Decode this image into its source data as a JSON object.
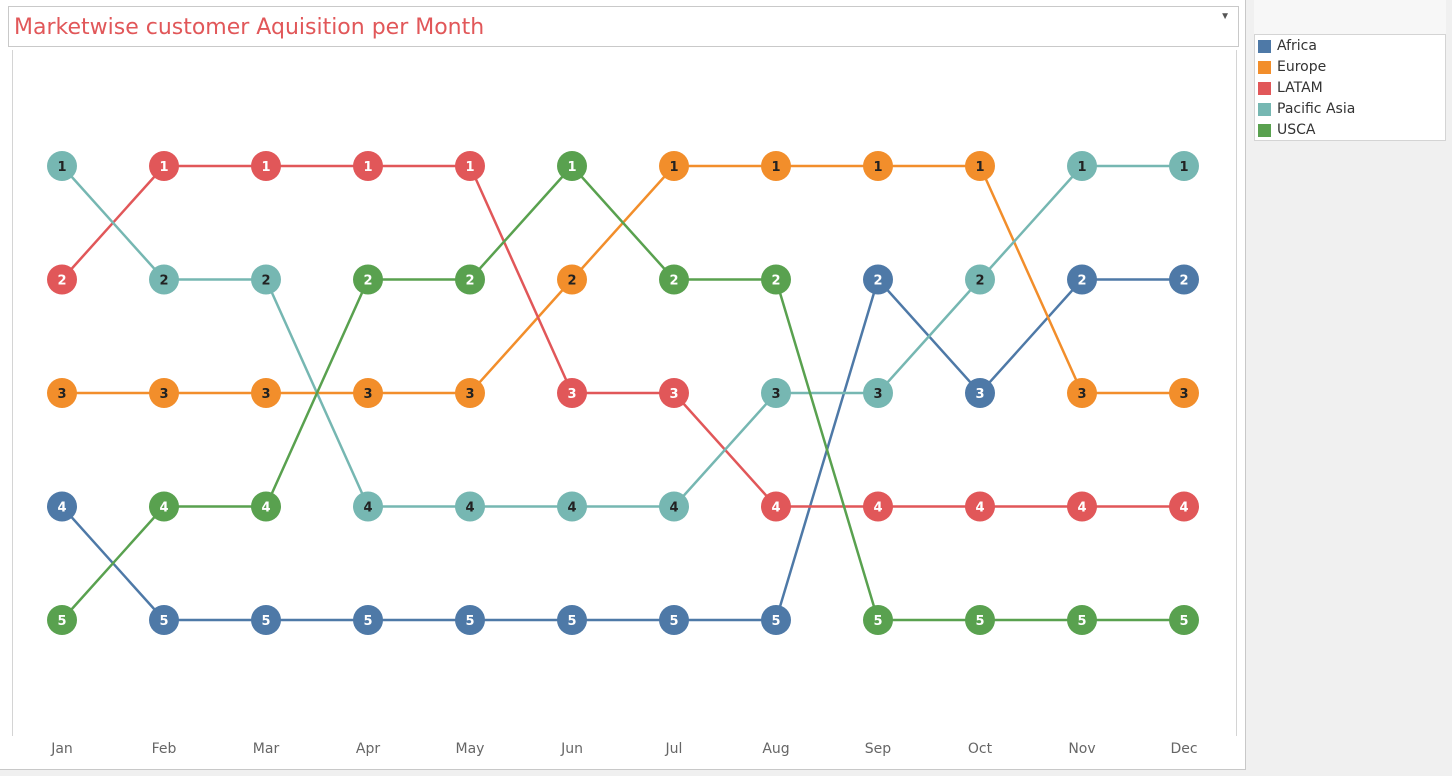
{
  "title": "Marketwise customer Aquisition per Month",
  "chart_data": {
    "type": "line",
    "title": "Marketwise customer Aquisition per Month",
    "x": [
      "Jan",
      "Feb",
      "Mar",
      "Apr",
      "May",
      "Jun",
      "Jul",
      "Aug",
      "Sep",
      "Oct",
      "Nov",
      "Dec"
    ],
    "y_reversed": true,
    "ylim": [
      1,
      5
    ],
    "grid": false,
    "legend_position": "right",
    "series": [
      {
        "name": "Africa",
        "color": "#4e79a7",
        "values": [
          4,
          5,
          5,
          5,
          5,
          5,
          5,
          5,
          2,
          3,
          2,
          2
        ]
      },
      {
        "name": "Europe",
        "color": "#f28e2b",
        "values": [
          3,
          3,
          3,
          3,
          3,
          2,
          1,
          1,
          1,
          1,
          3,
          3
        ]
      },
      {
        "name": "LATAM",
        "color": "#e15759",
        "values": [
          2,
          1,
          1,
          1,
          1,
          3,
          3,
          4,
          4,
          4,
          4,
          4
        ]
      },
      {
        "name": "Pacific Asia",
        "color": "#76b7b2",
        "values": [
          1,
          2,
          2,
          4,
          4,
          4,
          4,
          3,
          3,
          2,
          1,
          1
        ]
      },
      {
        "name": "USCA",
        "color": "#59a14f",
        "values": [
          5,
          4,
          4,
          2,
          2,
          1,
          2,
          2,
          5,
          5,
          5,
          5
        ]
      }
    ]
  },
  "legend": {
    "items": [
      {
        "label": "Africa",
        "color": "#4e79a7"
      },
      {
        "label": "Europe",
        "color": "#f28e2b"
      },
      {
        "label": "LATAM",
        "color": "#e15759"
      },
      {
        "label": "Pacific Asia",
        "color": "#76b7b2"
      },
      {
        "label": "USCA",
        "color": "#59a14f"
      }
    ]
  }
}
